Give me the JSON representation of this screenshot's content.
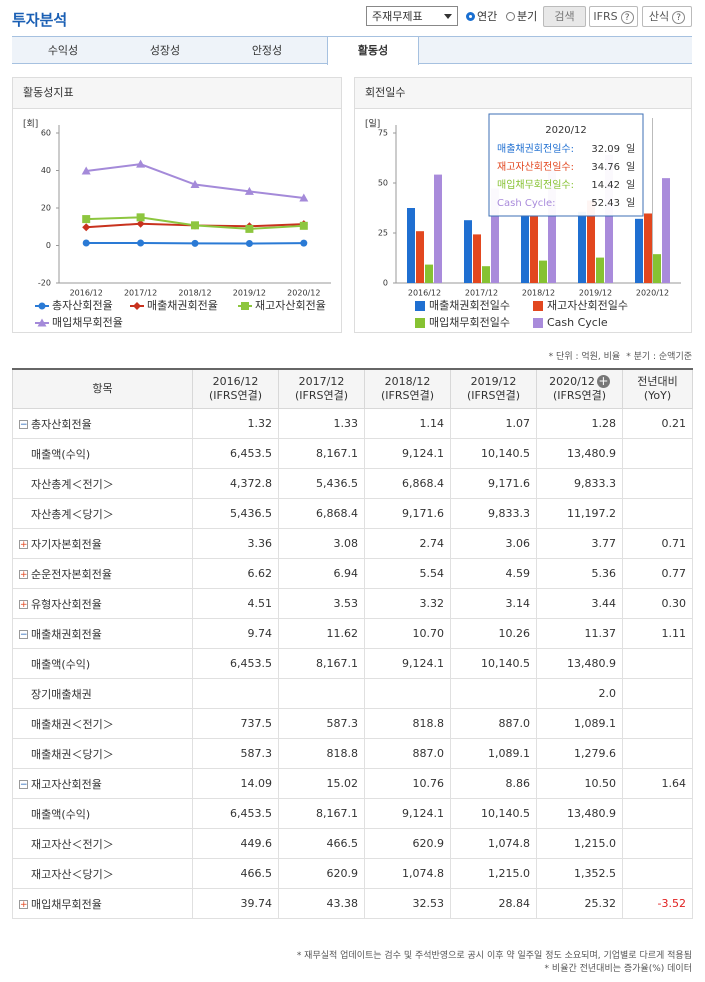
{
  "header": {
    "title": "투자분석",
    "select": "주재무제표",
    "radio": [
      "연간",
      "분기"
    ],
    "buttons": [
      "검색",
      "IFRS",
      "산식"
    ]
  },
  "tabs": [
    "수익성",
    "성장성",
    "안정성",
    "활동성"
  ],
  "chart_data": [
    {
      "type": "line",
      "title": "활동성지표",
      "unit": "[회]",
      "categories": [
        "2016/12",
        "2017/12",
        "2018/12",
        "2019/12",
        "2020/12"
      ],
      "series": [
        {
          "name": "총자산회전율",
          "color": "#2a7ad5",
          "marker": "circle",
          "values": [
            1.32,
            1.33,
            1.14,
            1.07,
            1.28
          ]
        },
        {
          "name": "매출채권회전율",
          "color": "#c8321e",
          "marker": "diamond",
          "values": [
            9.74,
            11.62,
            10.7,
            10.26,
            11.37
          ]
        },
        {
          "name": "재고자산회전율",
          "color": "#8dc63f",
          "marker": "square",
          "values": [
            14.09,
            15.02,
            10.76,
            8.86,
            10.5
          ]
        },
        {
          "name": "매입채무회전율",
          "color": "#a48ad9",
          "marker": "triangle",
          "values": [
            39.74,
            43.38,
            32.53,
            28.84,
            25.32
          ]
        }
      ],
      "ylim": [
        -20,
        60
      ],
      "yticks": [
        -20,
        0,
        20,
        40,
        60
      ]
    },
    {
      "type": "bar",
      "title": "회전일수",
      "unit": "[일]",
      "categories": [
        "2016/12",
        "2017/12",
        "2018/12",
        "2019/12",
        "2020/12"
      ],
      "series": [
        {
          "name": "매출채권회전일수",
          "color": "#1f6fd1",
          "values": [
            37.5,
            31.4,
            34.1,
            35.6,
            32.09
          ]
        },
        {
          "name": "재고자산회전일수",
          "color": "#e2471f",
          "values": [
            25.9,
            24.3,
            33.9,
            41.2,
            34.76
          ]
        },
        {
          "name": "매입채무회전일수",
          "color": "#86c232",
          "values": [
            9.2,
            8.4,
            11.2,
            12.7,
            14.42
          ]
        },
        {
          "name": "Cash Cycle",
          "color": "#a98bdb",
          "values": [
            54.2,
            47.3,
            56.8,
            64.1,
            52.43
          ]
        }
      ],
      "ylim": [
        0,
        75
      ],
      "yticks": [
        0,
        25,
        50,
        75
      ],
      "tooltip_separator": ":",
      "tooltip_unit": "일"
    }
  ],
  "unit_note": [
    "* 단위 : 억원, 비율",
    "* 분기 : 순액기준"
  ],
  "table": {
    "headers": [
      [
        "항목"
      ],
      [
        "2016/12",
        "(IFRS연결)"
      ],
      [
        "2017/12",
        "(IFRS연결)"
      ],
      [
        "2018/12",
        "(IFRS연결)"
      ],
      [
        "2019/12",
        "(IFRS연결)"
      ],
      [
        "2020/12",
        "(IFRS연결)"
      ],
      [
        "전년대비",
        "(YoY)"
      ]
    ],
    "rows": [
      {
        "label": "총자산회전율",
        "open": true,
        "cells": [
          "1.32",
          "1.33",
          "1.14",
          "1.07",
          "1.28"
        ],
        "yoy": "0.21",
        "children": [
          {
            "label": "매출액(수익)",
            "cells": [
              "6,453.5",
              "8,167.1",
              "9,124.1",
              "10,140.5",
              "13,480.9"
            ]
          },
          {
            "label": "자산총계＜전기＞",
            "cells": [
              "4,372.8",
              "5,436.5",
              "6,868.4",
              "9,171.6",
              "9,833.3"
            ]
          },
          {
            "label": "자산총계＜당기＞",
            "cells": [
              "5,436.5",
              "6,868.4",
              "9,171.6",
              "9,833.3",
              "11,197.2"
            ]
          }
        ]
      },
      {
        "label": "자기자본회전율",
        "open": false,
        "cells": [
          "3.36",
          "3.08",
          "2.74",
          "3.06",
          "3.77"
        ],
        "yoy": "0.71"
      },
      {
        "label": "순운전자본회전율",
        "open": false,
        "cells": [
          "6.62",
          "6.94",
          "5.54",
          "4.59",
          "5.36"
        ],
        "yoy": "0.77"
      },
      {
        "label": "유형자산회전율",
        "open": false,
        "cells": [
          "4.51",
          "3.53",
          "3.32",
          "3.14",
          "3.44"
        ],
        "yoy": "0.30"
      },
      {
        "label": "매출채권회전율",
        "open": true,
        "cells": [
          "9.74",
          "11.62",
          "10.70",
          "10.26",
          "11.37"
        ],
        "yoy": "1.11",
        "children": [
          {
            "label": "매출액(수익)",
            "cells": [
              "6,453.5",
              "8,167.1",
              "9,124.1",
              "10,140.5",
              "13,480.9"
            ]
          },
          {
            "label": "장기매출채권",
            "cells": [
              null,
              null,
              null,
              null,
              "2.0"
            ]
          },
          {
            "label": "매출채권＜전기＞",
            "cells": [
              "737.5",
              "587.3",
              "818.8",
              "887.0",
              "1,089.1"
            ]
          },
          {
            "label": "매출채권＜당기＞",
            "cells": [
              "587.3",
              "818.8",
              "887.0",
              "1,089.1",
              "1,279.6"
            ]
          }
        ]
      },
      {
        "label": "재고자산회전율",
        "open": true,
        "cells": [
          "14.09",
          "15.02",
          "10.76",
          "8.86",
          "10.50"
        ],
        "yoy": "1.64",
        "children": [
          {
            "label": "매출액(수익)",
            "cells": [
              "6,453.5",
              "8,167.1",
              "9,124.1",
              "10,140.5",
              "13,480.9"
            ]
          },
          {
            "label": "재고자산＜전기＞",
            "cells": [
              "449.6",
              "466.5",
              "620.9",
              "1,074.8",
              "1,215.0"
            ]
          },
          {
            "label": "재고자산＜당기＞",
            "cells": [
              "466.5",
              "620.9",
              "1,074.8",
              "1,215.0",
              "1,352.5"
            ]
          }
        ]
      },
      {
        "label": "매입채무회전율",
        "open": false,
        "cells": [
          "39.74",
          "43.38",
          "32.53",
          "28.84",
          "25.32"
        ],
        "yoy": "-3.52"
      }
    ]
  },
  "footnotes": [
    "* 재무실적 업데이트는 검수 및 주석반영으로 공시 이후 약 일주일 정도 소요되며, 기업별로 다르게 적용됨",
    "* 비율간 전년대비는 증가율(%) 데이터"
  ]
}
